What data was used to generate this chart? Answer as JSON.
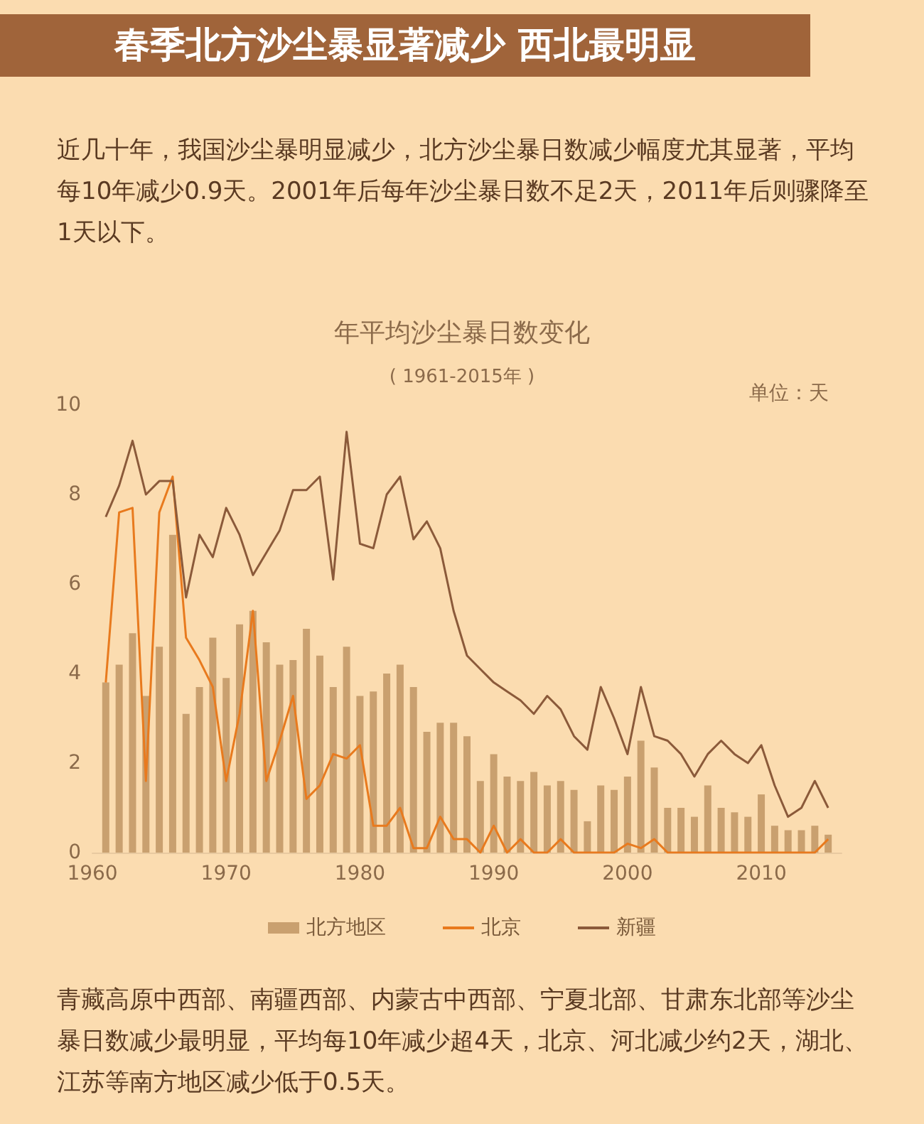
{
  "chart_data": {
    "type": "bar",
    "title": "春季北方沙尘暴显著减少 西北最明显",
    "subtitle": "近几十年，我国沙尘暴明显减少，北方沙尘暴日数减少幅度尤其显著，平均每10年减少0.9天。2001年后每年沙尘暴日数不足2天，2011年后则骤降至1天以下。",
    "annotations": [
      "年平均沙尘暴日数变化",
      "( 1961-2015年 )",
      "青藏高原中西部、南疆西部、内蒙古中西部、宁夏北部、甘肃东北部等沙尘暴日数减少最明显，平均每10年减少超4天，北京、河北减少约2天，湖北、江苏等南方地区减少低于0.5天。"
    ],
    "ylabel": "单位：天",
    "x": [
      1961,
      1962,
      1963,
      1964,
      1965,
      1966,
      1967,
      1968,
      1969,
      1970,
      1971,
      1972,
      1973,
      1974,
      1975,
      1976,
      1977,
      1978,
      1979,
      1980,
      1981,
      1982,
      1983,
      1984,
      1985,
      1986,
      1987,
      1988,
      1989,
      1990,
      1991,
      1992,
      1993,
      1994,
      1995,
      1996,
      1997,
      1998,
      1999,
      2000,
      2001,
      2002,
      2003,
      2004,
      2005,
      2006,
      2007,
      2008,
      2009,
      2010,
      2011,
      2012,
      2013,
      2014,
      2015
    ],
    "series": [
      {
        "name": "北方地区",
        "color": "#c9a06f",
        "values": [
          3.8,
          4.2,
          4.9,
          3.5,
          4.6,
          7.1,
          3.1,
          3.7,
          4.8,
          3.9,
          5.1,
          5.4,
          4.7,
          4.2,
          4.3,
          5.0,
          4.4,
          3.7,
          4.6,
          3.5,
          3.6,
          4.0,
          4.2,
          3.7,
          2.7,
          2.9,
          2.9,
          2.6,
          1.6,
          2.2,
          1.7,
          1.6,
          1.8,
          1.5,
          1.6,
          1.4,
          0.7,
          1.5,
          1.4,
          1.7,
          2.5,
          1.9,
          1.0,
          1.0,
          0.8,
          1.5,
          1.0,
          0.9,
          0.8,
          1.3,
          0.6,
          0.5,
          0.5,
          0.6,
          0.4
        ]
      },
      {
        "name": "北京",
        "type": "line",
        "color": "#e87a1e",
        "values": [
          3.8,
          7.6,
          7.7,
          1.6,
          7.6,
          8.4,
          4.8,
          4.3,
          3.7,
          1.6,
          3.1,
          5.4,
          1.6,
          2.5,
          3.5,
          1.2,
          1.5,
          2.2,
          2.1,
          2.4,
          0.6,
          0.6,
          1.0,
          0.1,
          0.1,
          0.8,
          0.3,
          0.3,
          0.0,
          0.6,
          0.0,
          0.3,
          0.0,
          0.0,
          0.3,
          0.0,
          0.0,
          0.0,
          0.0,
          0.2,
          0.1,
          0.3,
          0.0,
          0.0,
          0.0,
          0.0,
          0.0,
          0.0,
          0.0,
          0.0,
          0.0,
          0.0,
          0.0,
          0.0,
          0.3
        ]
      },
      {
        "name": "新疆",
        "type": "line",
        "color": "#8b5a3a",
        "values": [
          7.5,
          8.2,
          9.2,
          8.0,
          8.3,
          8.3,
          5.7,
          7.1,
          6.6,
          7.7,
          7.1,
          6.2,
          6.7,
          7.2,
          8.1,
          8.1,
          8.4,
          6.1,
          9.4,
          6.9,
          6.8,
          8.0,
          8.4,
          7.0,
          7.4,
          6.8,
          5.4,
          4.4,
          4.1,
          3.8,
          3.6,
          3.4,
          3.1,
          3.5,
          3.2,
          2.6,
          2.3,
          3.7,
          3.0,
          2.2,
          3.7,
          2.6,
          2.5,
          2.2,
          1.7,
          2.2,
          2.5,
          2.2,
          2.0,
          2.4,
          1.5,
          0.8,
          1.0,
          1.6,
          1.0
        ]
      }
    ],
    "xlim": [
      1960,
      2016
    ],
    "xticks": [
      1960,
      1970,
      1980,
      1990,
      2000,
      2010
    ],
    "ylim": [
      0,
      10
    ],
    "yticks": [
      0,
      2,
      4,
      6,
      8,
      10
    ],
    "grid": false,
    "legend": "bottom",
    "marker": "none",
    "line_style": "solid"
  }
}
